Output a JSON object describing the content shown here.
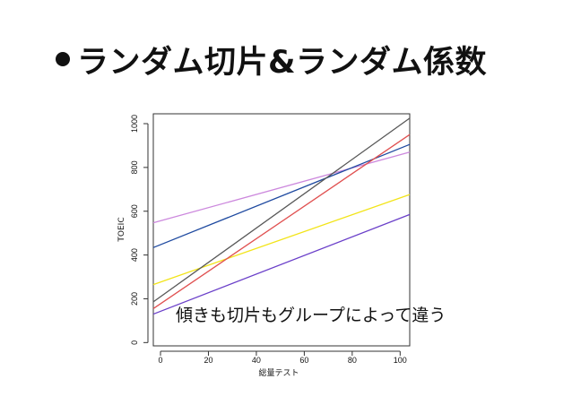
{
  "slide": {
    "title": "ランダム切片&ランダム係数"
  },
  "chart_data": {
    "type": "line",
    "xlabel": "総量テスト",
    "ylabel": "TOEIC",
    "xlim": [
      -3,
      104
    ],
    "ylim": [
      -15,
      1045
    ],
    "x_ticks": [
      "0",
      "20",
      "40",
      "60",
      "80",
      "100"
    ],
    "y_ticks": [
      "0",
      "200",
      "400",
      "600",
      "800",
      "1000"
    ],
    "grid": false,
    "annotation": "傾きも切片もグループによって違う",
    "series": [
      {
        "color": "#cc88dd",
        "x": [
          -3,
          104
        ],
        "y": [
          547,
          870
        ]
      },
      {
        "color": "#1f4aa0",
        "x": [
          -3,
          104
        ],
        "y": [
          434,
          905
        ]
      },
      {
        "color": "#f2e419",
        "x": [
          -3,
          104
        ],
        "y": [
          265,
          676
        ]
      },
      {
        "color": "#575757",
        "x": [
          -3,
          104
        ],
        "y": [
          186,
          1025
        ]
      },
      {
        "color": "#e05050",
        "x": [
          -3,
          104
        ],
        "y": [
          155,
          950
        ]
      },
      {
        "color": "#6a3fc9",
        "x": [
          -3,
          104
        ],
        "y": [
          130,
          585
        ]
      }
    ]
  }
}
